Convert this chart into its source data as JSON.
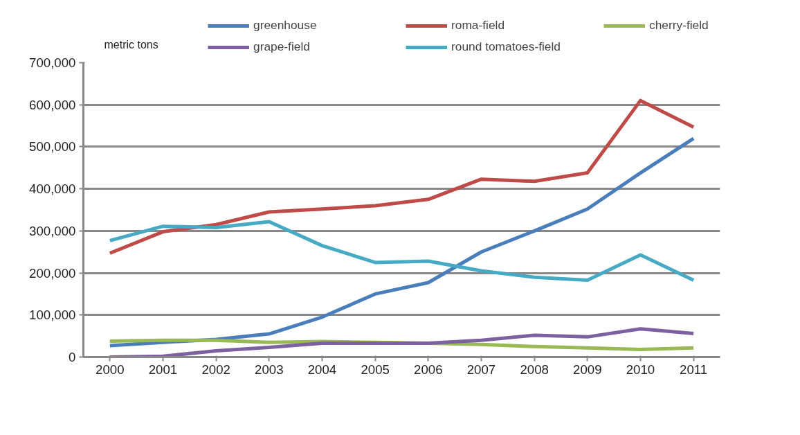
{
  "chart_data": {
    "type": "line",
    "ylabel": "metric tons",
    "categories": [
      "2000",
      "2001",
      "2002",
      "2003",
      "2004",
      "2005",
      "2006",
      "2007",
      "2008",
      "2009",
      "2010",
      "2011"
    ],
    "series": [
      {
        "name": "greenhouse",
        "color": "#4a7ebb",
        "values": [
          27000,
          35000,
          42000,
          55000,
          95000,
          150000,
          177000,
          250000,
          300000,
          352000,
          438000,
          520000
        ]
      },
      {
        "name": "roma-field",
        "color": "#be4b48",
        "values": [
          247000,
          298000,
          315000,
          345000,
          352000,
          360000,
          375000,
          423000,
          418000,
          438000,
          610000,
          547000
        ]
      },
      {
        "name": "cherry-field",
        "color": "#98b954",
        "values": [
          38000,
          40000,
          40000,
          35000,
          37000,
          35000,
          33000,
          30000,
          25000,
          22000,
          18000,
          22000
        ]
      },
      {
        "name": "grape-field",
        "color": "#7d60a0",
        "values": [
          0,
          2000,
          15000,
          23000,
          33000,
          33000,
          33000,
          40000,
          52000,
          48000,
          67000,
          56000
        ]
      },
      {
        "name": "round tomatoes-field",
        "color": "#46aac5",
        "values": [
          277000,
          311000,
          308000,
          322000,
          265000,
          225000,
          228000,
          205000,
          190000,
          183000,
          243000,
          183000
        ]
      }
    ],
    "ylim": [
      0,
      700000
    ],
    "yticks": [
      {
        "value": 0,
        "label": "0"
      },
      {
        "value": 100000,
        "label": "100,000"
      },
      {
        "value": 200000,
        "label": "200,000"
      },
      {
        "value": 300000,
        "label": "300,000"
      },
      {
        "value": 400000,
        "label": "400,000"
      },
      {
        "value": 500000,
        "label": "500,000"
      },
      {
        "value": 600000,
        "label": "600,000"
      },
      {
        "value": 700000,
        "label": "700,000"
      }
    ],
    "grid": "y",
    "legend": "top",
    "marker": "none",
    "line_style": "solid"
  }
}
